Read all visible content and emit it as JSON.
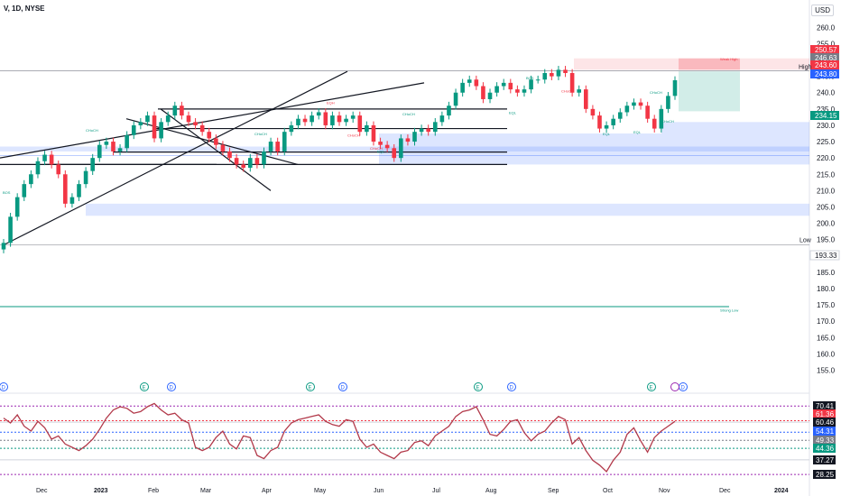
{
  "header": {
    "symbol": "V, 1D, NYSE",
    "currency": "USD"
  },
  "chart_data": {
    "type": "candlestick",
    "yaxis_ticks": [
      260,
      255,
      250,
      245,
      240,
      235,
      230,
      225,
      220,
      215,
      210,
      205,
      200,
      195,
      190,
      185,
      180,
      175,
      170,
      165,
      160,
      155
    ],
    "ylim": [
      153.5,
      264.5
    ],
    "xaxis_labels": [
      "Dec",
      "2023",
      "Feb",
      "Mar",
      "Apr",
      "May",
      "Jun",
      "Jul",
      "Aug",
      "Sep",
      "Oct",
      "Nov",
      "Dec",
      "2024"
    ],
    "price_badges": [
      {
        "value": "250.57",
        "color": "#f23645"
      },
      {
        "value": "246.63",
        "color": "#787b86"
      },
      {
        "value": "243.60",
        "color": "#f23645"
      },
      {
        "value": "243.80",
        "color": "#2962ff"
      },
      {
        "value": "234.15",
        "color": "#089981"
      },
      {
        "value": "193.33",
        "color": "#ffffff"
      }
    ],
    "high_label": "High",
    "low_label": "Low",
    "annotations": [
      "BOS",
      "CHoCH",
      "CHoCH",
      "CHoCH",
      "CHoCH",
      "EQH",
      "CHoCH",
      "CHoCH",
      "EQL",
      "EQL",
      "BOS",
      "CHoCH",
      "EQL",
      "EQL",
      "CHoCH",
      "Weak High",
      "Strong Low"
    ],
    "event_markers": [
      "D",
      "E",
      "D",
      "E",
      "D",
      "E",
      "D",
      "E",
      "D"
    ],
    "close_series": [
      194,
      202,
      208,
      212,
      215,
      219,
      221,
      218,
      215,
      206,
      208,
      212,
      216,
      220,
      224,
      225,
      222,
      223,
      227,
      230,
      231,
      233,
      226,
      231,
      233,
      236,
      233,
      231,
      230,
      228,
      226,
      224,
      222,
      220,
      218,
      217,
      220,
      218,
      222,
      225,
      222,
      228,
      230,
      232,
      231,
      233,
      234,
      230,
      233,
      231,
      232,
      233,
      228,
      230,
      225,
      224,
      223,
      220,
      226,
      225,
      228,
      229,
      228,
      231,
      233,
      236,
      240,
      243,
      244,
      242,
      238,
      240,
      242,
      243,
      241,
      240,
      241,
      244,
      244,
      246,
      245,
      247,
      246,
      240,
      241,
      235,
      233,
      229,
      230,
      232,
      234,
      236,
      237,
      236,
      232,
      229,
      235,
      239,
      243.8
    ],
    "rsi": {
      "levels": [
        "70.41",
        "61.36",
        "60.46",
        "54.31",
        "49.33",
        "44.36",
        "37.27",
        "28.25"
      ],
      "level_colors": [
        "#131722",
        "#f23645",
        "#131722",
        "#2962ff",
        "#787b86",
        "#089981",
        "#131722",
        "#131722"
      ],
      "ylim": [
        25,
        75
      ],
      "values": [
        63,
        60,
        65,
        58,
        55,
        61,
        57,
        50,
        52,
        47,
        45,
        43,
        46,
        50,
        56,
        63,
        68,
        70,
        69,
        66,
        67,
        70,
        72,
        68,
        65,
        66,
        62,
        60,
        45,
        43,
        45,
        51,
        55,
        47,
        44,
        52,
        51,
        40,
        38,
        43,
        45,
        55,
        60,
        62,
        63,
        64,
        65,
        61,
        59,
        58,
        62,
        61,
        50,
        45,
        47,
        42,
        40,
        38,
        42,
        43,
        48,
        49,
        46,
        52,
        55,
        58,
        64,
        67,
        68,
        70,
        62,
        53,
        52,
        56,
        61,
        62,
        54,
        49,
        53,
        55,
        60,
        64,
        62,
        47,
        51,
        43,
        37,
        34,
        30,
        37,
        42,
        53,
        57,
        49,
        42,
        51,
        55,
        58,
        61
      ]
    }
  }
}
